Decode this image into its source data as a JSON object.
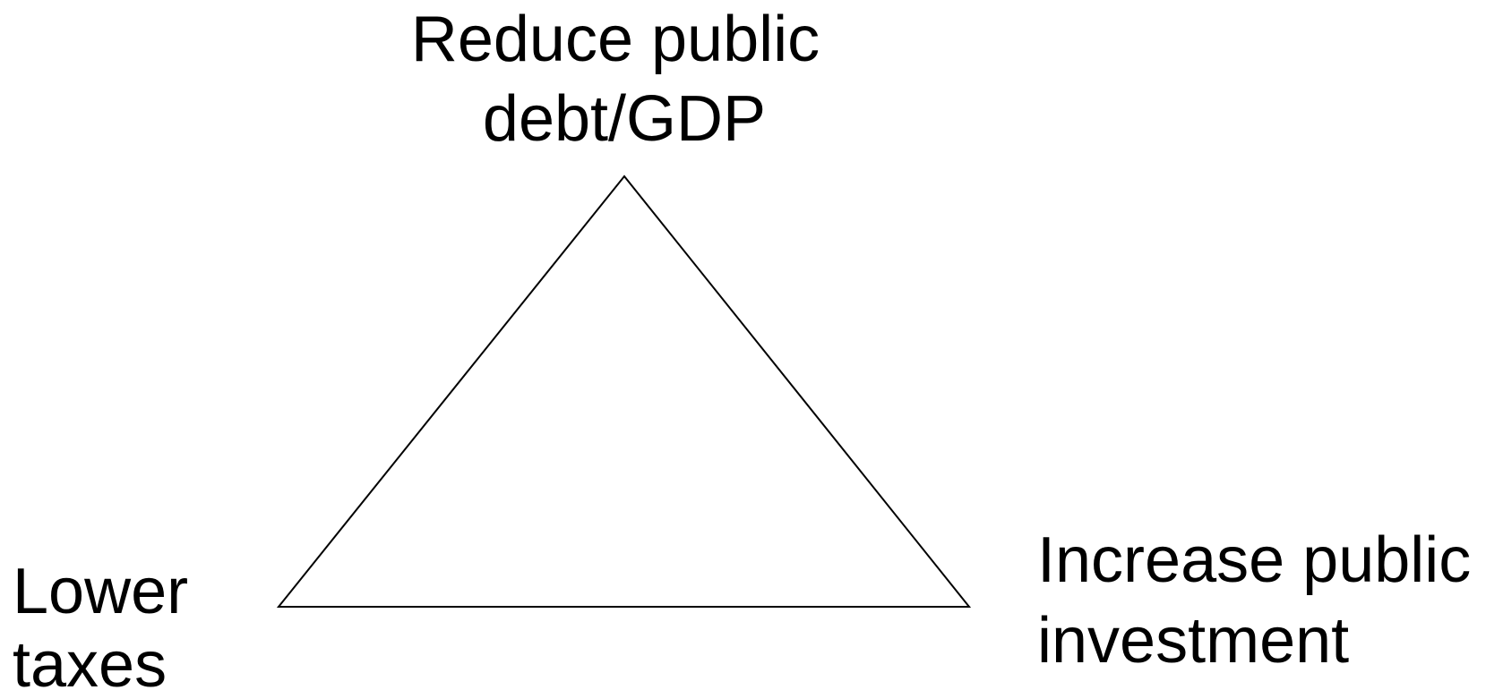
{
  "nodes": [
    {
      "label": [
        "Reduce public",
        "debt/GDP"
      ]
    },
    {
      "label": [
        "Lower",
        "taxes"
      ]
    },
    {
      "label": [
        "Increase public",
        "investment"
      ]
    }
  ]
}
